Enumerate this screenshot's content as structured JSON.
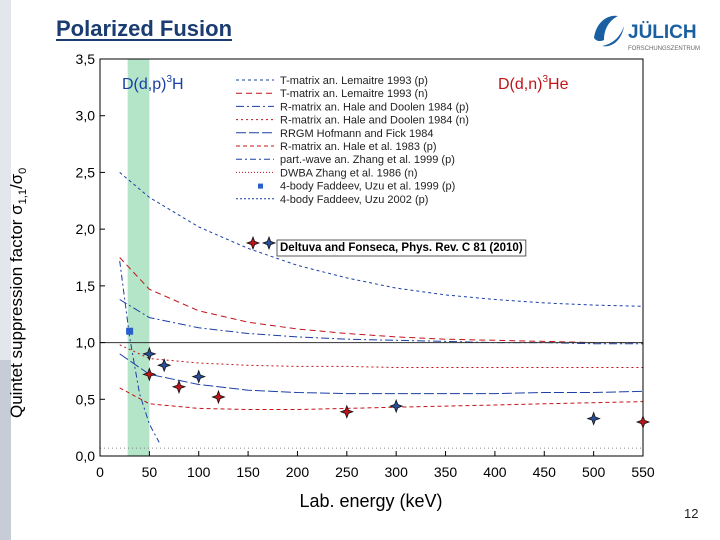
{
  "slide": {
    "title": "Polarized Fusion",
    "page_number": "12",
    "logo_text": "JÜLICH",
    "logo_subtext": "FORSCHUNGSZENTRUM",
    "logo_color": "#1a5fa0"
  },
  "chart_data": {
    "type": "scatter",
    "xlabel": "Lab. energy (keV)",
    "ylabel_main": "Quintet suppression factor σ",
    "ylabel_sub": "1,1",
    "ylabel_tail": "/σ",
    "ylabel_tail_sub": "0",
    "xlim": [
      0,
      550
    ],
    "ylim": [
      0.0,
      3.5
    ],
    "x_ticks": [
      0,
      50,
      100,
      150,
      200,
      250,
      300,
      350,
      400,
      450,
      500,
      550
    ],
    "y_ticks": [
      "0,0",
      "0,5",
      "1,0",
      "1,5",
      "2,0",
      "2,5",
      "3,0",
      "3,5"
    ],
    "y_tick_values": [
      0.0,
      0.5,
      1.0,
      1.5,
      2.0,
      2.5,
      3.0,
      3.5
    ],
    "grid": false,
    "legend_placement": "top-center",
    "reaction_left": "D(d,p)",
    "reaction_left_sup": "3",
    "reaction_left_tail": "H",
    "reaction_left_color": "#1a3fa6",
    "reaction_right": "D(d,n)",
    "reaction_right_sup": "3",
    "reaction_right_tail": "He",
    "reaction_right_color": "#c0141a",
    "band": {
      "x_from": 28,
      "x_to": 50,
      "color": "#a8e0c0"
    },
    "reference_line": {
      "y": 1.0
    },
    "legend": [
      "T-matrix an. Lemaitre 1993 (p)",
      "T-matrix an. Lemaitre 1993 (n)",
      "R-matrix an. Hale and Doolen 1984 (p)",
      "R-matrix an. Hale and Doolen 1984 (n)",
      "RRGM Hofmann and Fick 1984",
      "R-matrix an. Hale et al. 1983 (p)",
      "part.-wave an. Zhang et al. 1999 (p)",
      "DWBA Zhang et al. 1986 (n)",
      "4-body Faddeev, Uzu et al. 1999 (p)",
      "4-body Faddeev, Uzu 2002 (p)"
    ],
    "highlight_legend": "Deltuva and Fonseca, Phys. Rev. C 81 (2010)",
    "curves": [
      {
        "color": "#1a3fa6",
        "dash": "3,3",
        "x": [
          20,
          50,
          100,
          150,
          200,
          250,
          300,
          350,
          400,
          450,
          500,
          550
        ],
        "y": [
          2.5,
          2.28,
          2.02,
          1.83,
          1.68,
          1.57,
          1.48,
          1.42,
          1.38,
          1.35,
          1.33,
          1.32
        ]
      },
      {
        "color": "#c0141a",
        "dash": "6,4",
        "x": [
          20,
          50,
          100,
          150,
          200,
          250,
          300,
          350,
          400,
          450,
          500,
          550
        ],
        "y": [
          1.75,
          1.47,
          1.28,
          1.18,
          1.12,
          1.08,
          1.05,
          1.03,
          1.02,
          1.01,
          1.0,
          1.0
        ]
      },
      {
        "color": "#1a3fa6",
        "dash": "8,3,2,3",
        "x": [
          20,
          50,
          100,
          150,
          200,
          250,
          300,
          350,
          400,
          450,
          500,
          550
        ],
        "y": [
          1.38,
          1.22,
          1.13,
          1.08,
          1.05,
          1.03,
          1.02,
          1.01,
          1.0,
          1.0,
          0.99,
          0.99
        ]
      },
      {
        "color": "#c0141a",
        "dash": "2,3",
        "x": [
          20,
          50,
          100,
          150,
          200,
          250,
          300,
          350,
          400,
          450,
          500,
          550
        ],
        "y": [
          0.98,
          0.86,
          0.82,
          0.8,
          0.79,
          0.79,
          0.78,
          0.78,
          0.78,
          0.78,
          0.78,
          0.78
        ]
      },
      {
        "color": "#1a3fa6",
        "dash": "10,3",
        "x": [
          20,
          50,
          100,
          150,
          200,
          250,
          300,
          350,
          400,
          450,
          500,
          550
        ],
        "y": [
          0.9,
          0.72,
          0.63,
          0.58,
          0.56,
          0.55,
          0.55,
          0.55,
          0.55,
          0.56,
          0.56,
          0.57
        ]
      },
      {
        "color": "#c0141a",
        "dash": "4,3",
        "x": [
          20,
          50,
          100,
          150,
          200,
          250,
          300,
          350,
          400,
          450,
          500,
          550
        ],
        "y": [
          0.6,
          0.46,
          0.42,
          0.41,
          0.41,
          0.42,
          0.43,
          0.44,
          0.45,
          0.46,
          0.47,
          0.48
        ]
      },
      {
        "color": "#1a3fa6",
        "dash": "6,3,2,3",
        "x": [
          20,
          30,
          40,
          50,
          60
        ],
        "y": [
          1.72,
          1.05,
          0.55,
          0.28,
          0.12
        ]
      },
      {
        "color": "#888888",
        "dash": "1,3",
        "x": [
          0,
          550
        ],
        "y": [
          0.07,
          0.07
        ]
      }
    ],
    "series": [
      {
        "kind": "square",
        "color": "#2a5fcc",
        "x": [
          30
        ],
        "y": [
          1.1
        ]
      },
      {
        "kind": "star",
        "color": "#c0141a",
        "x": [
          50,
          80,
          120,
          250,
          550
        ],
        "y": [
          0.72,
          0.61,
          0.52,
          0.39,
          0.3
        ]
      },
      {
        "kind": "star",
        "color": "#2a4f9a",
        "x": [
          50,
          65,
          100,
          300,
          500
        ],
        "y": [
          0.9,
          0.8,
          0.7,
          0.44,
          0.33
        ]
      }
    ]
  }
}
